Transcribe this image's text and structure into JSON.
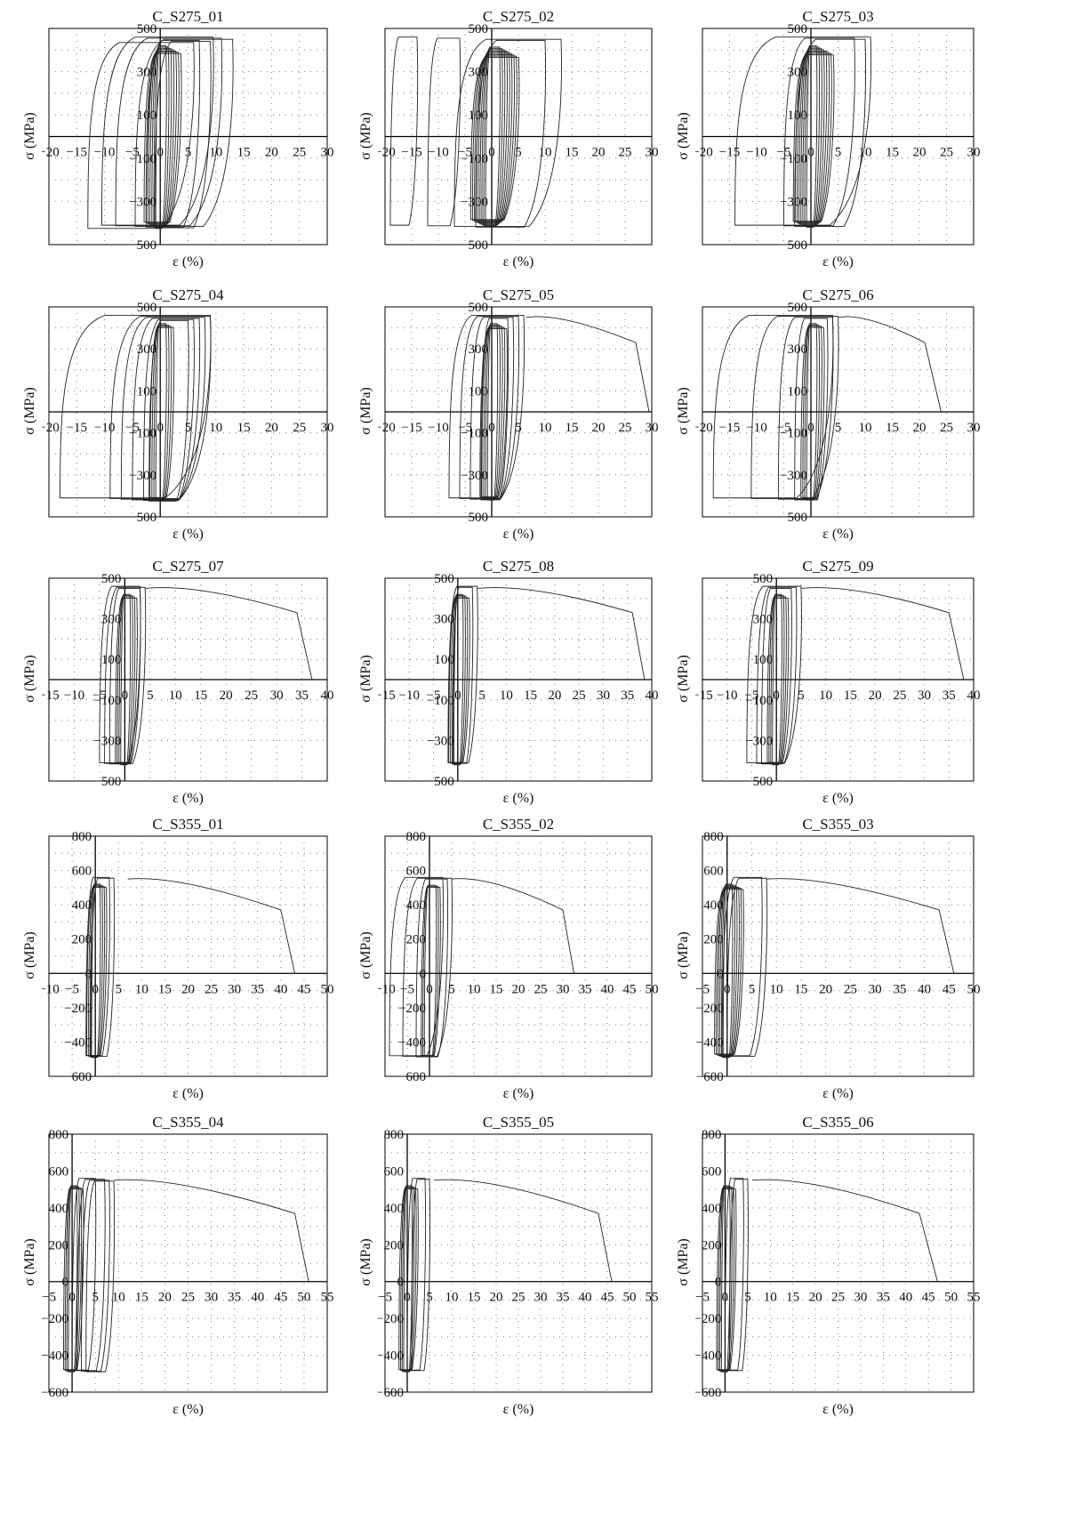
{
  "axis_labels": {
    "x": "ε (%)",
    "y": "σ (MPa)"
  },
  "colors": {
    "curve": "#222222",
    "axis": "#000000",
    "grid": "#7a7a7a",
    "background": "#ffffff"
  },
  "chart_data": [
    {
      "type": "line",
      "title": "C_S275_01",
      "xlim": [
        -20,
        30
      ],
      "ylim": [
        -500,
        500
      ],
      "x_ticks": [
        -20,
        -15,
        -10,
        -5,
        0,
        5,
        10,
        15,
        20,
        25,
        30
      ],
      "y_ticks": [
        500,
        300,
        100,
        -100,
        -300,
        -500
      ],
      "x_tick_labels": [
        "−20",
        "−15",
        "−10",
        "−5",
        "0",
        "5",
        "10",
        "15",
        "20",
        "25",
        "30"
      ],
      "y_tick_labels": [
        "500",
        "300",
        "100",
        "−100",
        "−300",
        "−500"
      ],
      "grid": true,
      "monotonic": null,
      "inner_loops": [
        0,
        1,
        2,
        3,
        4,
        5,
        6
      ],
      "outer_loops": [
        [
          -10.5,
          9.5
        ],
        [
          -8,
          11
        ],
        [
          -4.5,
          13
        ],
        [
          -2.5,
          7
        ],
        [
          -1,
          9
        ],
        [
          -13,
          6
        ]
      ]
    },
    {
      "type": "line",
      "title": "C_S275_02",
      "xlim": [
        -20,
        30
      ],
      "ylim": [
        -500,
        500
      ],
      "x_ticks": [
        -20,
        -15,
        -10,
        -5,
        0,
        5,
        10,
        15,
        20,
        25,
        30
      ],
      "y_ticks": [
        500,
        300,
        100,
        -100,
        -300,
        -500
      ],
      "x_tick_labels": [
        "−20",
        "−15",
        "−10",
        "−5",
        "0",
        "5",
        "10",
        "15",
        "20",
        "25",
        "30"
      ],
      "y_tick_labels": [
        "500",
        "300",
        "100",
        "−100",
        "−300",
        "−500"
      ],
      "grid": true,
      "monotonic": null,
      "inner_loops": [
        1,
        2,
        3,
        4,
        5,
        6,
        7,
        8,
        9
      ],
      "outer_loops": [
        [
          -19,
          -14
        ],
        [
          -12,
          -6
        ],
        [
          -7,
          13
        ],
        [
          -3,
          10
        ]
      ]
    },
    {
      "type": "line",
      "title": "C_S275_03",
      "xlim": [
        -20,
        30
      ],
      "ylim": [
        -500,
        500
      ],
      "x_ticks": [
        -20,
        -15,
        -10,
        -5,
        0,
        5,
        10,
        15,
        20,
        25,
        30
      ],
      "y_ticks": [
        500,
        300,
        100,
        -100,
        -300,
        -500
      ],
      "x_tick_labels": [
        "−20",
        "−15",
        "−10",
        "−5",
        "0",
        "5",
        "10",
        "15",
        "20",
        "25",
        "30"
      ],
      "y_tick_labels": [
        "500",
        "300",
        "100",
        "−100",
        "−300",
        "−500"
      ],
      "grid": true,
      "monotonic": null,
      "inner_loops": [
        0,
        1,
        2,
        3,
        4,
        5,
        6,
        7
      ],
      "outer_loops": [
        [
          -14,
          11
        ],
        [
          -5,
          8
        ],
        [
          -3,
          10
        ]
      ]
    },
    {
      "type": "line",
      "title": "C_S275_04",
      "xlim": [
        -20,
        30
      ],
      "ylim": [
        -500,
        500
      ],
      "x_ticks": [
        -20,
        -15,
        -10,
        -5,
        0,
        5,
        10,
        15,
        20,
        25,
        30
      ],
      "y_ticks": [
        500,
        300,
        100,
        -100,
        -300,
        -500
      ],
      "x_tick_labels": [
        "−20",
        "−15",
        "−10",
        "−5",
        "0",
        "5",
        "10",
        "15",
        "20",
        "25",
        "30"
      ],
      "y_tick_labels": [
        "500",
        "300",
        "100",
        "−100",
        "−300",
        "−500"
      ],
      "grid": true,
      "monotonic": null,
      "inner_loops": [
        0,
        1,
        2,
        3
      ],
      "outer_loops": [
        [
          -18,
          9
        ],
        [
          -9,
          9
        ],
        [
          -7,
          8
        ],
        [
          -5,
          7
        ],
        [
          -3,
          6
        ],
        [
          -2,
          5
        ]
      ]
    },
    {
      "type": "line",
      "title": "C_S275_05",
      "xlim": [
        -20,
        30
      ],
      "ylim": [
        -500,
        500
      ],
      "x_ticks": [
        -20,
        -15,
        -10,
        -5,
        0,
        5,
        10,
        15,
        20,
        25,
        30
      ],
      "y_ticks": [
        500,
        300,
        100,
        -100,
        -300,
        -500
      ],
      "x_tick_labels": [
        "−20",
        "−15",
        "−10",
        "−5",
        "0",
        "5",
        "10",
        "15",
        "20",
        "25",
        "30"
      ],
      "y_tick_labels": [
        "500",
        "300",
        "100",
        "−100",
        "−300",
        "−500"
      ],
      "grid": true,
      "monotonic": {
        "start": 6.5,
        "break": 27,
        "end": 29.5
      },
      "inner_loops": [
        0,
        1,
        2,
        3,
        4
      ],
      "outer_loops": [
        [
          -8,
          6
        ],
        [
          -6,
          5
        ],
        [
          -4,
          4
        ],
        [
          -2,
          3
        ]
      ]
    },
    {
      "type": "line",
      "title": "C_S275_06",
      "xlim": [
        -20,
        30
      ],
      "ylim": [
        -500,
        500
      ],
      "x_ticks": [
        -20,
        -15,
        -10,
        -5,
        0,
        5,
        10,
        15,
        20,
        25,
        30
      ],
      "y_ticks": [
        500,
        300,
        100,
        -100,
        -300,
        -500
      ],
      "x_tick_labels": [
        "−20",
        "−15",
        "−10",
        "−5",
        "0",
        "5",
        "10",
        "15",
        "20",
        "25",
        "30"
      ],
      "y_tick_labels": [
        "500",
        "300",
        "100",
        "−100",
        "−300",
        "−500"
      ],
      "grid": true,
      "monotonic": {
        "start": 5,
        "break": 21,
        "end": 24
      },
      "inner_loops": [
        0,
        1,
        2,
        3
      ],
      "outer_loops": [
        [
          -18,
          4
        ],
        [
          -11,
          5
        ],
        [
          -6,
          4
        ],
        [
          -3,
          3
        ]
      ]
    },
    {
      "type": "line",
      "title": "C_S275_07",
      "xlim": [
        -15,
        40
      ],
      "ylim": [
        -500,
        500
      ],
      "x_ticks": [
        -15,
        -10,
        -5,
        0,
        5,
        10,
        15,
        20,
        25,
        30,
        35,
        40
      ],
      "y_ticks": [
        500,
        300,
        100,
        -100,
        -300,
        -500
      ],
      "x_tick_labels": [
        "−15",
        "−10",
        "−5",
        "0",
        "5",
        "10",
        "15",
        "20",
        "25",
        "30",
        "35",
        "40"
      ],
      "y_tick_labels": [
        "500",
        "300",
        "100",
        "−100",
        "−300",
        "−500"
      ],
      "grid": true,
      "monotonic": {
        "start": 4,
        "break": 34,
        "end": 37
      },
      "inner_loops": [
        0,
        1,
        2,
        3
      ],
      "outer_loops": [
        [
          -5,
          3
        ],
        [
          -4,
          4
        ],
        [
          -3,
          3
        ]
      ]
    },
    {
      "type": "line",
      "title": "C_S275_08",
      "xlim": [
        -15,
        40
      ],
      "ylim": [
        -500,
        500
      ],
      "x_ticks": [
        -15,
        -10,
        -5,
        0,
        5,
        10,
        15,
        20,
        25,
        30,
        35,
        40
      ],
      "y_ticks": [
        500,
        300,
        100,
        -100,
        -300,
        -500
      ],
      "x_tick_labels": [
        "−15",
        "−10",
        "−5",
        "0",
        "5",
        "10",
        "15",
        "20",
        "25",
        "30",
        "35",
        "40"
      ],
      "y_tick_labels": [
        "500",
        "300",
        "100",
        "−100",
        "−300",
        "−500"
      ],
      "grid": true,
      "monotonic": {
        "start": 4,
        "break": 36,
        "end": 38.5
      },
      "inner_loops": [
        0,
        1,
        2,
        3
      ],
      "outer_loops": [
        [
          -2,
          4
        ],
        [
          -1,
          3
        ]
      ]
    },
    {
      "type": "line",
      "title": "C_S275_09",
      "xlim": [
        -15,
        40
      ],
      "ylim": [
        -500,
        500
      ],
      "x_ticks": [
        -15,
        -10,
        -5,
        0,
        5,
        10,
        15,
        20,
        25,
        30,
        35,
        40
      ],
      "y_ticks": [
        500,
        300,
        100,
        -100,
        -300,
        -500
      ],
      "x_tick_labels": [
        "−15",
        "−10",
        "−5",
        "0",
        "5",
        "10",
        "15",
        "20",
        "25",
        "30",
        "35",
        "40"
      ],
      "y_tick_labels": [
        "500",
        "300",
        "100",
        "−100",
        "−300",
        "−500"
      ],
      "grid": true,
      "monotonic": {
        "start": 5,
        "break": 35,
        "end": 38
      },
      "inner_loops": [
        0,
        1,
        2,
        3
      ],
      "outer_loops": [
        [
          -6,
          5
        ],
        [
          -4,
          4
        ],
        [
          -3,
          3
        ]
      ]
    },
    {
      "type": "line",
      "title": "C_S355_01",
      "xlim": [
        -10,
        50
      ],
      "ylim": [
        -600,
        800
      ],
      "x_ticks": [
        -10,
        -5,
        0,
        5,
        10,
        15,
        20,
        25,
        30,
        35,
        40,
        45,
        50
      ],
      "y_ticks": [
        800,
        600,
        400,
        200,
        0,
        -200,
        -400,
        -600
      ],
      "x_tick_labels": [
        "−10",
        "−5",
        "0",
        "5",
        "10",
        "15",
        "20",
        "25",
        "30",
        "35",
        "40",
        "45",
        "50"
      ],
      "y_tick_labels": [
        "800",
        "600",
        "400",
        "200",
        "0",
        "−200",
        "−400",
        "−600"
      ],
      "grid": true,
      "monotonic": {
        "start": 7,
        "break": 40,
        "end": 43
      },
      "inner_loops": [
        0,
        1,
        2,
        3
      ],
      "outer_loops": [
        [
          -2,
          3
        ],
        [
          -1,
          4
        ]
      ]
    },
    {
      "type": "line",
      "title": "C_S355_02",
      "xlim": [
        -10,
        50
      ],
      "ylim": [
        -600,
        800
      ],
      "x_ticks": [
        -10,
        -5,
        0,
        5,
        10,
        15,
        20,
        25,
        30,
        35,
        40,
        45,
        50
      ],
      "y_ticks": [
        800,
        600,
        400,
        200,
        0,
        -200,
        -400,
        -600
      ],
      "x_tick_labels": [
        "−10",
        "−5",
        "0",
        "5",
        "10",
        "15",
        "20",
        "25",
        "30",
        "35",
        "40",
        "45",
        "50"
      ],
      "y_tick_labels": [
        "800",
        "600",
        "400",
        "200",
        "0",
        "−200",
        "−400",
        "−600"
      ],
      "grid": true,
      "monotonic": {
        "start": 5,
        "break": 30,
        "end": 32.5
      },
      "inner_loops": [
        1,
        2,
        3
      ],
      "outer_loops": [
        [
          -9,
          3
        ],
        [
          -6,
          5
        ],
        [
          -3,
          4
        ]
      ]
    },
    {
      "type": "line",
      "title": "C_S355_03",
      "xlim": [
        -5,
        50
      ],
      "ylim": [
        -600,
        800
      ],
      "x_ticks": [
        -5,
        0,
        5,
        10,
        15,
        20,
        25,
        30,
        35,
        40,
        45,
        50
      ],
      "y_ticks": [
        800,
        600,
        400,
        200,
        0,
        -200,
        -400,
        -600
      ],
      "x_tick_labels": [
        "−5",
        "0",
        "5",
        "10",
        "15",
        "20",
        "25",
        "30",
        "35",
        "40",
        "45",
        "50"
      ],
      "y_tick_labels": [
        "800",
        "600",
        "400",
        "200",
        "0",
        "−200",
        "−400",
        "−600"
      ],
      "grid": true,
      "monotonic": {
        "start": 8,
        "break": 43,
        "end": 46
      },
      "inner_loops": [
        0,
        1,
        2,
        3,
        4,
        5
      ],
      "outer_loops": [
        [
          -1,
          7
        ],
        [
          0,
          8
        ]
      ]
    },
    {
      "type": "line",
      "title": "C_S355_04",
      "xlim": [
        -5,
        55
      ],
      "ylim": [
        -600,
        800
      ],
      "x_ticks": [
        -5,
        0,
        5,
        10,
        15,
        20,
        25,
        30,
        35,
        40,
        45,
        50,
        55
      ],
      "y_ticks": [
        800,
        600,
        400,
        200,
        0,
        -200,
        -400,
        -600
      ],
      "x_tick_labels": [
        "−5",
        "0",
        "5",
        "10",
        "15",
        "20",
        "25",
        "30",
        "35",
        "40",
        "45",
        "50",
        "55"
      ],
      "y_tick_labels": [
        "800",
        "600",
        "400",
        "200",
        "0",
        "−200",
        "−400",
        "−600"
      ],
      "grid": true,
      "monotonic": {
        "start": 9,
        "break": 48,
        "end": 51
      },
      "inner_loops": [
        0,
        1,
        2,
        3
      ],
      "outer_loops": [
        [
          0,
          5
        ],
        [
          1,
          7
        ],
        [
          2,
          8
        ],
        [
          3,
          9
        ]
      ]
    },
    {
      "type": "line",
      "title": "C_S355_05",
      "xlim": [
        -5,
        55
      ],
      "ylim": [
        -600,
        800
      ],
      "x_ticks": [
        -5,
        0,
        5,
        10,
        15,
        20,
        25,
        30,
        35,
        40,
        45,
        50,
        55
      ],
      "y_ticks": [
        800,
        600,
        400,
        200,
        0,
        -200,
        -400,
        -600
      ],
      "x_tick_labels": [
        "−5",
        "0",
        "5",
        "10",
        "15",
        "20",
        "25",
        "30",
        "35",
        "40",
        "45",
        "50",
        "55"
      ],
      "y_tick_labels": [
        "800",
        "600",
        "400",
        "200",
        "0",
        "−200",
        "−400",
        "−600"
      ],
      "grid": true,
      "monotonic": {
        "start": 6,
        "break": 43,
        "end": 46
      },
      "inner_loops": [
        0,
        1,
        2,
        3
      ],
      "outer_loops": [
        [
          0,
          4
        ],
        [
          1,
          5
        ]
      ]
    },
    {
      "type": "line",
      "title": "C_S355_06",
      "xlim": [
        -5,
        55
      ],
      "ylim": [
        -600,
        800
      ],
      "x_ticks": [
        -5,
        0,
        5,
        10,
        15,
        20,
        25,
        30,
        35,
        40,
        45,
        50,
        55
      ],
      "y_ticks": [
        800,
        600,
        400,
        200,
        0,
        -200,
        -400,
        -600
      ],
      "x_tick_labels": [
        "−5",
        "0",
        "5",
        "10",
        "15",
        "20",
        "25",
        "30",
        "35",
        "40",
        "45",
        "50",
        "55"
      ],
      "y_tick_labels": [
        "800",
        "600",
        "400",
        "200",
        "0",
        "−200",
        "−400",
        "−600"
      ],
      "grid": true,
      "monotonic": {
        "start": 6,
        "break": 43,
        "end": 47
      },
      "inner_loops": [
        0,
        1,
        2,
        3
      ],
      "outer_loops": [
        [
          0,
          4
        ],
        [
          1,
          5
        ]
      ]
    }
  ]
}
